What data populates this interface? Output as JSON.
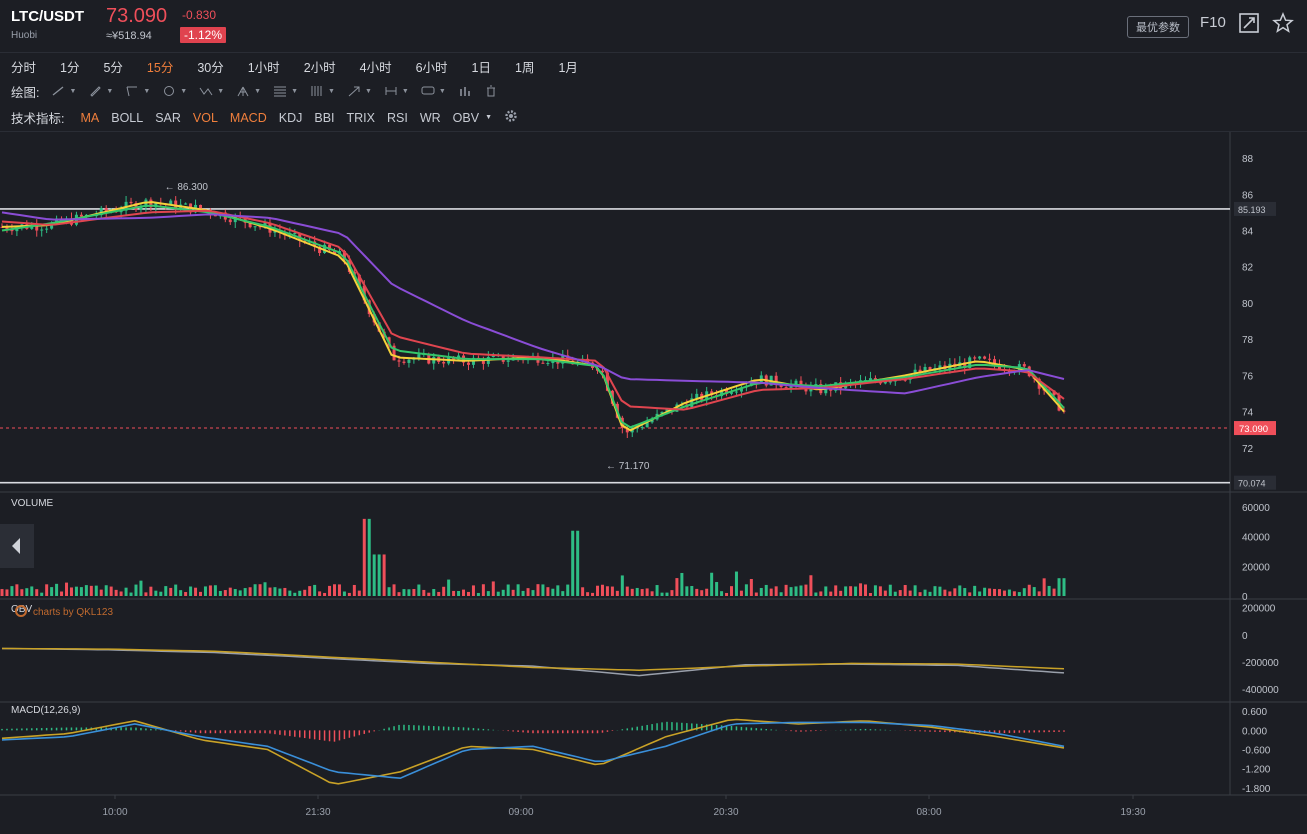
{
  "header": {
    "symbol": "LTC/USDT",
    "exchange": "Huobi",
    "price": "73.090",
    "change": "-0.830",
    "cny": "≈¥518.94",
    "change_pct": "-1.12%",
    "best_params": "最优参数",
    "f10": "F10",
    "icons": [
      "fullscreen-icon",
      "star-icon"
    ]
  },
  "timeframes": {
    "items": [
      "分时",
      "1分",
      "5分",
      "15分",
      "30分",
      "1小时",
      "2小时",
      "4小时",
      "6小时",
      "1日",
      "1周",
      "1月"
    ],
    "active": "15分"
  },
  "drawing": {
    "label": "绘图:",
    "tools": [
      "line-tool-icon",
      "pen-tool-icon",
      "ray-tool-icon",
      "circle-tool-icon",
      "pattern-tool-icon",
      "pitchfork-tool-icon",
      "fib-tool-icon",
      "gann-tool-icon",
      "arrow-tool-icon",
      "range-tool-icon",
      "comment-tool-icon",
      "bar-tool-icon",
      "trash-icon"
    ]
  },
  "indicators": {
    "label": "技术指标:",
    "items": [
      "MA",
      "BOLL",
      "SAR",
      "VOL",
      "MACD",
      "KDJ",
      "BBI",
      "TRIX",
      "RSI",
      "WR",
      "OBV"
    ],
    "active": [
      "MA",
      "VOL",
      "MACD"
    ],
    "settings_icon": "gear-icon"
  },
  "colors": {
    "up": "#2ebd85",
    "down": "#ef4f5a",
    "ma_yellow": "#f5d23a",
    "ma_green": "#35c66a",
    "ma_red": "#e0454f",
    "ma_purple": "#8a4dd6",
    "accent": "#f07f3c"
  },
  "chart_data": [
    {
      "type": "candlestick",
      "title": "",
      "y_ticks": [
        "88",
        "86",
        "84",
        "82",
        "80",
        "78",
        "76",
        "74",
        "72"
      ],
      "ylim": [
        70,
        89
      ],
      "x_ticks": [
        "10:00",
        "21:30",
        "09:00",
        "20:30",
        "08:00",
        "19:30"
      ],
      "high_label": "86.300",
      "low_label": "71.170",
      "high_value": 86.3,
      "low_value": 71.17,
      "current_price": "73.090",
      "current_value": 73.09,
      "hline_upper": "85.193",
      "hline_upper_value": 85.193,
      "hline_lower": "70.074",
      "hline_lower_value": 70.074,
      "watermark": "charts by QKL123",
      "ma_series": [
        {
          "color": "yellow",
          "values": [
            84.2,
            84.3,
            85.6,
            85.1,
            84.1,
            82.5,
            77.0,
            76.8,
            77.0,
            76.5,
            72.8,
            74.5,
            75.8,
            75.2,
            76.0,
            76.8,
            76.3,
            74.0
          ]
        },
        {
          "color": "green",
          "values": [
            84.0,
            84.4,
            85.4,
            85.0,
            84.2,
            82.7,
            77.4,
            76.9,
            76.9,
            76.5,
            73.0,
            74.3,
            75.6,
            75.4,
            75.9,
            76.6,
            76.4,
            74.2
          ]
        },
        {
          "color": "red",
          "values": [
            84.5,
            84.3,
            85.0,
            85.1,
            84.4,
            83.0,
            78.2,
            77.2,
            77.0,
            76.8,
            74.3,
            74.1,
            75.2,
            75.3,
            75.8,
            76.4,
            76.2,
            74.7
          ]
        },
        {
          "color": "purple",
          "values": [
            85.0,
            84.6,
            84.7,
            84.9,
            84.7,
            83.8,
            81.0,
            79.0,
            77.5,
            76.5,
            75.8,
            75.7,
            75.6,
            75.3,
            75.0,
            75.9,
            76.3,
            75.8
          ]
        }
      ],
      "x_positions": [
        0,
        0.04,
        0.12,
        0.17,
        0.22,
        0.28,
        0.32,
        0.38,
        0.44,
        0.49,
        0.51,
        0.56,
        0.62,
        0.67,
        0.74,
        0.8,
        0.84,
        0.87
      ]
    },
    {
      "type": "bar",
      "title": "VOLUME",
      "y_ticks": [
        "60000",
        "40000",
        "20000",
        "0"
      ],
      "ylim": [
        0,
        60000
      ],
      "peaks": [
        {
          "x": 0.3,
          "value": 52000
        },
        {
          "x": 0.31,
          "value": 28000
        },
        {
          "x": 0.47,
          "value": 44000
        },
        {
          "x": 0.87,
          "value": 12000
        }
      ]
    },
    {
      "type": "line",
      "title": "OBV",
      "y_ticks": [
        "200000",
        "0",
        "-200000",
        "-400000"
      ],
      "ylim": [
        -450000,
        220000
      ],
      "series": [
        {
          "color": "grey",
          "values": [
            -100000,
            -110000,
            -130000,
            -170000,
            -210000,
            -230000,
            -300000,
            -220000,
            -215000,
            -225000,
            -280000
          ]
        },
        {
          "color": "gold",
          "values": [
            -100000,
            -105000,
            -120000,
            -160000,
            -200000,
            -240000,
            -260000,
            -230000,
            -210000,
            -215000,
            -250000
          ]
        }
      ]
    },
    {
      "type": "line",
      "title": "MACD(12,26,9)",
      "y_ticks": [
        "0.600",
        "0.000",
        "-0.600",
        "-1.200",
        "-1.800"
      ],
      "ylim": [
        -1.9,
        0.7
      ],
      "series": [
        {
          "color": "gold",
          "values": [
            -0.25,
            -0.1,
            0.3,
            -0.3,
            -0.6,
            -1.7,
            -1.3,
            -0.5,
            -0.6,
            -1.1,
            -0.2,
            0.35,
            0.2,
            0.3,
            0.1,
            -0.2,
            -0.55
          ]
        },
        {
          "color": "blue",
          "values": [
            -0.3,
            -0.2,
            0.2,
            -0.2,
            -0.5,
            -1.3,
            -1.5,
            -0.6,
            -0.5,
            -1.0,
            -0.5,
            0.2,
            0.25,
            0.25,
            0.15,
            -0.1,
            -0.5
          ]
        }
      ]
    }
  ]
}
